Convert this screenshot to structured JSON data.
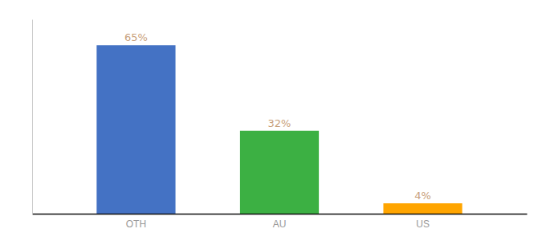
{
  "chart_data": {
    "type": "bar",
    "categories": [
      "OTH",
      "AU",
      "US"
    ],
    "values": [
      65,
      32,
      4
    ],
    "value_labels": [
      "65%",
      "32%",
      "4%"
    ],
    "colors": [
      "#4472c4",
      "#3cb043",
      "#ffa500"
    ],
    "ylim": [
      0,
      75
    ],
    "data_labels": true,
    "tick_labels": "x",
    "grid": false
  }
}
